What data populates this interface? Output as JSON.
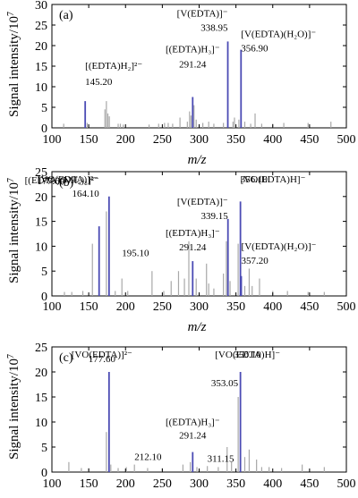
{
  "figure": {
    "ylabel": "Signal intensity/10",
    "ylabel_exp": "7",
    "xlabel": "m/z"
  },
  "chart_data": [
    {
      "type": "bar",
      "panel": "(a)",
      "xlabel": "m/z",
      "ylabel": "Signal intensity/10^7",
      "xlim": [
        100,
        500
      ],
      "ylim": [
        0,
        30
      ],
      "xticks": [
        "100",
        "150",
        "200",
        "250",
        "300",
        "350",
        "400",
        "450",
        "500"
      ],
      "yticks": [
        "0",
        "5",
        "10",
        "15",
        "20",
        "25",
        "30"
      ],
      "annotations": [
        {
          "text": "[(EDTA)H₂]²⁻",
          "mz": 145.2,
          "anchor": "left",
          "dy": -36
        },
        {
          "text": "145.20",
          "mz": 145.2,
          "anchor": "left",
          "dy": -18
        },
        {
          "text": "[(EDTA)H₃]⁻",
          "mz": 291.24,
          "anchor": "middle",
          "dy": -50
        },
        {
          "text": "291.24",
          "mz": 291.24,
          "anchor": "middle",
          "dy": -33
        },
        {
          "text": "[V(EDTA)]⁻",
          "mz": 338.95,
          "anchor": "end",
          "dy": -28
        },
        {
          "text": "338.95",
          "mz": 338.95,
          "anchor": "end",
          "dy": -12
        },
        {
          "text": "[V(EDTA)(H₂O)]⁻",
          "mz": 356.9,
          "anchor": "start",
          "dy": -14
        },
        {
          "text": "356.90",
          "mz": 356.9,
          "anchor": "start",
          "dy": 2
        }
      ],
      "highlighted_peaks": [
        {
          "mz": 145.2,
          "y": 6.5
        },
        {
          "mz": 291.24,
          "y": 7.5
        },
        {
          "mz": 338.95,
          "y": 21.0
        },
        {
          "mz": 356.9,
          "y": 19.0
        }
      ],
      "other_peaks": [
        {
          "mz": 116,
          "y": 1.0
        },
        {
          "mz": 148,
          "y": 1.2
        },
        {
          "mz": 172,
          "y": 4.5
        },
        {
          "mz": 174,
          "y": 6.5
        },
        {
          "mz": 176,
          "y": 3.5
        },
        {
          "mz": 178,
          "y": 2.8
        },
        {
          "mz": 190,
          "y": 1.0
        },
        {
          "mz": 193,
          "y": 1.0
        },
        {
          "mz": 197,
          "y": 0.8
        },
        {
          "mz": 232,
          "y": 0.8
        },
        {
          "mz": 245,
          "y": 1.0
        },
        {
          "mz": 253,
          "y": 1.2
        },
        {
          "mz": 258,
          "y": 1.2
        },
        {
          "mz": 264,
          "y": 1.0
        },
        {
          "mz": 274,
          "y": 2.5
        },
        {
          "mz": 284,
          "y": 1.5
        },
        {
          "mz": 287,
          "y": 4.0
        },
        {
          "mz": 289,
          "y": 3.0
        },
        {
          "mz": 293,
          "y": 5.5
        },
        {
          "mz": 296,
          "y": 2.0
        },
        {
          "mz": 305,
          "y": 1.2
        },
        {
          "mz": 313,
          "y": 1.5
        },
        {
          "mz": 320,
          "y": 1.0
        },
        {
          "mz": 333,
          "y": 1.2
        },
        {
          "mz": 346,
          "y": 1.5
        },
        {
          "mz": 348,
          "y": 2.5
        },
        {
          "mz": 354,
          "y": 2.0
        },
        {
          "mz": 362,
          "y": 1.5
        },
        {
          "mz": 370,
          "y": 1.0
        },
        {
          "mz": 376,
          "y": 3.5
        },
        {
          "mz": 385,
          "y": 1.0
        },
        {
          "mz": 400,
          "y": 1.0
        },
        {
          "mz": 415,
          "y": 1.2
        },
        {
          "mz": 448,
          "y": 1.2
        },
        {
          "mz": 479,
          "y": 1.5
        }
      ]
    },
    {
      "type": "bar",
      "panel": "(b)",
      "xlabel": "m/z",
      "ylabel": "Signal intensity/10^7",
      "xlim": [
        100,
        500
      ],
      "ylim": [
        0,
        25
      ],
      "xticks": [
        "100",
        "150",
        "200",
        "250",
        "300",
        "350",
        "400",
        "450",
        "500"
      ],
      "yticks": [
        "0",
        "5",
        "10",
        "15",
        "20",
        "25"
      ],
      "annotations": [
        {
          "text": "[VO(EDTA)]²⁻",
          "mz": 177.6,
          "anchor": "start",
          "dy": -30,
          "dx": -80
        },
        {
          "text": "177.60",
          "mz": 177.6,
          "anchor": "start",
          "dy": -14,
          "dx": -80
        },
        {
          "text": "[(EDTA)(NH₄)₂]²⁻",
          "mz": 164.1,
          "anchor": "end",
          "dy": -48
        },
        {
          "text": "164.10",
          "mz": 164.1,
          "anchor": "end",
          "dy": -33
        },
        {
          "text": "195.10",
          "mz": 195.1,
          "anchor": "start",
          "dy": -25
        },
        {
          "text": "[(EDTA)H₃]⁻",
          "mz": 291.24,
          "anchor": "middle",
          "dy": -28
        },
        {
          "text": "291.24",
          "mz": 291.24,
          "anchor": "middle",
          "dy": -12
        },
        {
          "text": "[V(EDTA)]⁻",
          "mz": 339.15,
          "anchor": "end",
          "dy": -16
        },
        {
          "text": "339.15",
          "mz": 339.15,
          "anchor": "end",
          "dy": 0
        },
        {
          "text": "[VO(EDTA)H]⁻",
          "mz": 356.1,
          "anchor": "start",
          "dy": -38
        },
        {
          "text": "356.10",
          "mz": 356.1,
          "anchor": "start",
          "dy": -23
        },
        {
          "text": "[V(EDTA)(H₂O)]⁻",
          "mz": 357.2,
          "anchor": "start",
          "dy": -30
        },
        {
          "text": "357.20",
          "mz": 357.2,
          "anchor": "start",
          "dy": -14
        }
      ],
      "highlighted_peaks": [
        {
          "mz": 164.1,
          "y": 14.0
        },
        {
          "mz": 177.6,
          "y": 20.0
        },
        {
          "mz": 291.24,
          "y": 7.0
        },
        {
          "mz": 339.15,
          "y": 15.5
        },
        {
          "mz": 356.1,
          "y": 19.0
        },
        {
          "mz": 357.2,
          "y": 4.0
        }
      ],
      "other_peaks": [
        {
          "mz": 117,
          "y": 0.8
        },
        {
          "mz": 127,
          "y": 0.8
        },
        {
          "mz": 142,
          "y": 1.0
        },
        {
          "mz": 155,
          "y": 10.5
        },
        {
          "mz": 174,
          "y": 17.0
        },
        {
          "mz": 186,
          "y": 1.0
        },
        {
          "mz": 195.1,
          "y": 3.5
        },
        {
          "mz": 203,
          "y": 1.0
        },
        {
          "mz": 236,
          "y": 5.0
        },
        {
          "mz": 252,
          "y": 1.0
        },
        {
          "mz": 262,
          "y": 3.0
        },
        {
          "mz": 272,
          "y": 5.0
        },
        {
          "mz": 280,
          "y": 3.5
        },
        {
          "mz": 286,
          "y": 11.0
        },
        {
          "mz": 296,
          "y": 3.5
        },
        {
          "mz": 310,
          "y": 6.5
        },
        {
          "mz": 313,
          "y": 2.5
        },
        {
          "mz": 320,
          "y": 1.5
        },
        {
          "mz": 333,
          "y": 4.5
        },
        {
          "mz": 337,
          "y": 11.0
        },
        {
          "mz": 342,
          "y": 3.0
        },
        {
          "mz": 353,
          "y": 10.5
        },
        {
          "mz": 362,
          "y": 2.0
        },
        {
          "mz": 368,
          "y": 5.5
        },
        {
          "mz": 372,
          "y": 2.0
        },
        {
          "mz": 382,
          "y": 3.5
        },
        {
          "mz": 400,
          "y": 1.0
        },
        {
          "mz": 420,
          "y": 1.0
        },
        {
          "mz": 448,
          "y": 0.8
        },
        {
          "mz": 470,
          "y": 0.8
        }
      ]
    },
    {
      "type": "bar",
      "panel": "(c)",
      "xlabel": "m/z",
      "ylabel": "Signal intensity/10^7",
      "xlim": [
        100,
        500
      ],
      "ylim": [
        0,
        25
      ],
      "xticks": [
        "100",
        "150",
        "200",
        "250",
        "300",
        "350",
        "400",
        "450",
        "500"
      ],
      "yticks": [
        "0",
        "5",
        "10",
        "15",
        "20",
        "25"
      ],
      "annotations": [
        {
          "text": "[VO(EDTA)]²⁻",
          "mz": 177.6,
          "anchor": "middle",
          "dy": -26,
          "dx": -8
        },
        {
          "text": "177.60",
          "mz": 177.6,
          "anchor": "middle",
          "dy": -11,
          "dx": -8
        },
        {
          "text": "212.10",
          "mz": 212.1,
          "anchor": "start",
          "dy": -5
        },
        {
          "text": "[(EDTA)H₃]⁻",
          "mz": 291.24,
          "anchor": "middle",
          "dy": -30
        },
        {
          "text": "291.24",
          "mz": 291.24,
          "anchor": "middle",
          "dy": -15
        },
        {
          "text": "311.15",
          "mz": 311.15,
          "anchor": "start",
          "dy": -5
        },
        {
          "text": "[VO(EDTA)H]⁻",
          "mz": 356.1,
          "anchor": "middle",
          "dy": -40,
          "dx": 8
        },
        {
          "text": "356.10",
          "mz": 356.1,
          "anchor": "middle",
          "dy": -25,
          "dx": 8
        },
        {
          "text": "353.05",
          "mz": 353.05,
          "anchor": "end",
          "dy": -12
        }
      ],
      "highlighted_peaks": [
        {
          "mz": 177.6,
          "y": 20.0
        },
        {
          "mz": 291.24,
          "y": 4.0
        },
        {
          "mz": 356.1,
          "y": 20.0
        }
      ],
      "other_peaks": [
        {
          "mz": 123,
          "y": 2.0
        },
        {
          "mz": 140,
          "y": 0.8
        },
        {
          "mz": 150,
          "y": 0.8
        },
        {
          "mz": 174,
          "y": 8.0
        },
        {
          "mz": 180,
          "y": 1.5
        },
        {
          "mz": 190,
          "y": 0.8
        },
        {
          "mz": 201,
          "y": 1.0
        },
        {
          "mz": 212.1,
          "y": 1.5
        },
        {
          "mz": 230,
          "y": 0.8
        },
        {
          "mz": 250,
          "y": 0.8
        },
        {
          "mz": 278,
          "y": 1.5
        },
        {
          "mz": 288,
          "y": 2.0
        },
        {
          "mz": 297,
          "y": 1.0
        },
        {
          "mz": 311.15,
          "y": 1.2
        },
        {
          "mz": 326,
          "y": 1.0
        },
        {
          "mz": 338,
          "y": 5.0
        },
        {
          "mz": 344,
          "y": 2.0
        },
        {
          "mz": 353.05,
          "y": 15.0
        },
        {
          "mz": 362,
          "y": 3.0
        },
        {
          "mz": 368,
          "y": 4.5
        },
        {
          "mz": 378,
          "y": 2.5
        },
        {
          "mz": 385,
          "y": 1.0
        },
        {
          "mz": 395,
          "y": 1.0
        },
        {
          "mz": 412,
          "y": 0.8
        },
        {
          "mz": 440,
          "y": 1.5
        },
        {
          "mz": 470,
          "y": 1.0
        }
      ]
    }
  ],
  "colors": {
    "highlight": "#4b4bb4",
    "other": "#a8a8a8",
    "axis": "#000000"
  }
}
